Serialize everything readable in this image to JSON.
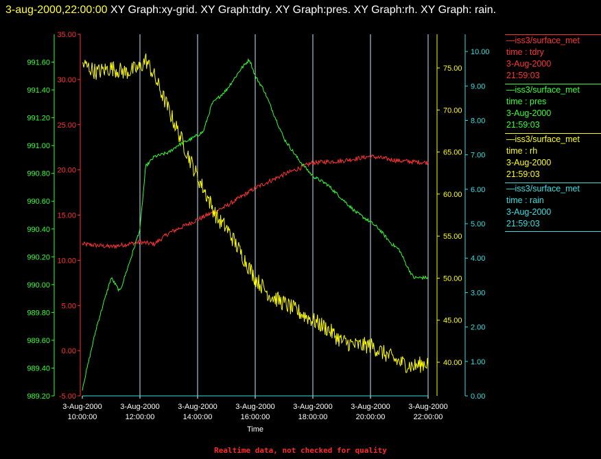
{
  "header": {
    "date_label": "3-aug-2000,22:00:00",
    "graph_list": "XY Graph:xy-grid.  XY Graph:tdry.  XY Graph:pres.  XY Graph:rh.  XY Graph: rain."
  },
  "footnote": "Realtime data, not checked for quality",
  "colors": {
    "tdry": "#ff3333",
    "pres": "#33ff33",
    "rh": "#ffff00",
    "rain": "#33e0e0",
    "grid": "#c8e8ff",
    "axis_text": "#ffffff"
  },
  "legend": [
    {
      "key": "tdry",
      "source": "iss3/surface_met",
      "field": "time : tdry",
      "date": "3-Aug-2000",
      "time": "21:59:03"
    },
    {
      "key": "pres",
      "source": "iss3/surface_met",
      "field": "time : pres",
      "date": "3-Aug-2000",
      "time": "21:59:03"
    },
    {
      "key": "rh",
      "source": "iss3/surface_met",
      "field": "time : rh",
      "date": "3-Aug-2000",
      "time": "21:59:03"
    },
    {
      "key": "rain",
      "source": "iss3/surface_met",
      "field": "time : rain",
      "date": "3-Aug-2000",
      "time": "21:59:03"
    }
  ],
  "chart_data": {
    "type": "line",
    "xlabel": "Time",
    "x_range": [
      "3-Aug-2000 10:00:00",
      "3-Aug-2000 22:00:00"
    ],
    "x_ticks": [
      {
        "date": "3-Aug-2000",
        "time": "10:00:00"
      },
      {
        "date": "3-Aug-2000",
        "time": "12:00:00"
      },
      {
        "date": "3-Aug-2000",
        "time": "14:00:00"
      },
      {
        "date": "3-Aug-2000",
        "time": "16:00:00"
      },
      {
        "date": "3-Aug-2000",
        "time": "18:00:00"
      },
      {
        "date": "3-Aug-2000",
        "time": "20:00:00"
      },
      {
        "date": "3-Aug-2000",
        "time": "22:00:00"
      }
    ],
    "grid": true,
    "axes": {
      "tdry": {
        "range": [
          -5,
          35
        ],
        "ticks": [
          "-5.00",
          "0.00",
          "5.00",
          "10.00",
          "15.00",
          "20.00",
          "25.00",
          "30.00",
          "35.00"
        ]
      },
      "pres": {
        "range": [
          989.2,
          991.8
        ],
        "ticks": [
          "989.20",
          "989.40",
          "989.60",
          "989.80",
          "990.00",
          "990.20",
          "990.40",
          "990.60",
          "990.80",
          "991.00",
          "991.20",
          "991.40",
          "991.60"
        ]
      },
      "rh": {
        "range": [
          36,
          79
        ],
        "ticks": [
          "40.00",
          "45.00",
          "50.00",
          "55.00",
          "60.00",
          "65.00",
          "70.00",
          "75.00"
        ]
      },
      "rain": {
        "range": [
          0,
          10.5
        ],
        "ticks": [
          "0.00",
          "1.00",
          "2.00",
          "3.00",
          "4.00",
          "5.00",
          "6.00",
          "7.00",
          "8.00",
          "9.00",
          "10.00"
        ]
      }
    },
    "series": [
      {
        "key": "tdry",
        "name": "time : tdry",
        "hours": [
          10,
          11,
          12,
          12.5,
          13,
          14,
          15,
          16,
          17,
          18,
          19,
          20,
          21,
          22
        ],
        "values": [
          11.8,
          11.5,
          12.0,
          11.8,
          13.0,
          14.5,
          16.0,
          18.0,
          19.5,
          20.8,
          21.0,
          21.5,
          21.0,
          20.8
        ],
        "noise": 0.25
      },
      {
        "key": "pres",
        "name": "time : pres",
        "hours": [
          10,
          10.5,
          11,
          11.3,
          11.7,
          12,
          12.2,
          12.5,
          13,
          13.3,
          13.8,
          14.2,
          14.5,
          15,
          15.5,
          15.8,
          16,
          16.3,
          16.7,
          17,
          17.5,
          18,
          18.5,
          19,
          19.5,
          20,
          20.3,
          20.7,
          21,
          21.3,
          21.5,
          22
        ],
        "values": [
          989.25,
          989.7,
          990.05,
          989.95,
          990.2,
          990.4,
          990.85,
          990.92,
          990.95,
          991.0,
          991.05,
          991.1,
          991.3,
          991.4,
          991.55,
          991.62,
          991.5,
          991.4,
          991.2,
          991.05,
          990.9,
          990.78,
          990.72,
          990.62,
          990.52,
          990.45,
          990.4,
          990.3,
          990.25,
          990.12,
          990.05,
          990.05
        ],
        "noise": 0.012
      },
      {
        "key": "rh",
        "name": "time : rh",
        "hours": [
          10,
          10.5,
          11,
          11.5,
          12,
          12.2,
          12.5,
          13,
          13.5,
          14,
          14.3,
          14.7,
          15,
          15.5,
          16,
          16.5,
          17,
          17.5,
          18,
          18.5,
          19,
          19.5,
          20,
          20.5,
          21,
          21.5,
          22
        ],
        "values": [
          75.5,
          74.5,
          75.0,
          74.5,
          75.0,
          76.0,
          74.0,
          70.0,
          66.0,
          62.0,
          60.0,
          57.0,
          56.0,
          53.0,
          50.0,
          48.0,
          47.0,
          46.0,
          45.0,
          44.0,
          42.5,
          42.0,
          42.0,
          41.0,
          40.0,
          39.5,
          40.0
        ],
        "noise": 1.0
      },
      {
        "key": "rain",
        "name": "time : rain",
        "hours": [
          10,
          22
        ],
        "values": [
          0,
          0
        ],
        "noise": 0
      }
    ]
  }
}
